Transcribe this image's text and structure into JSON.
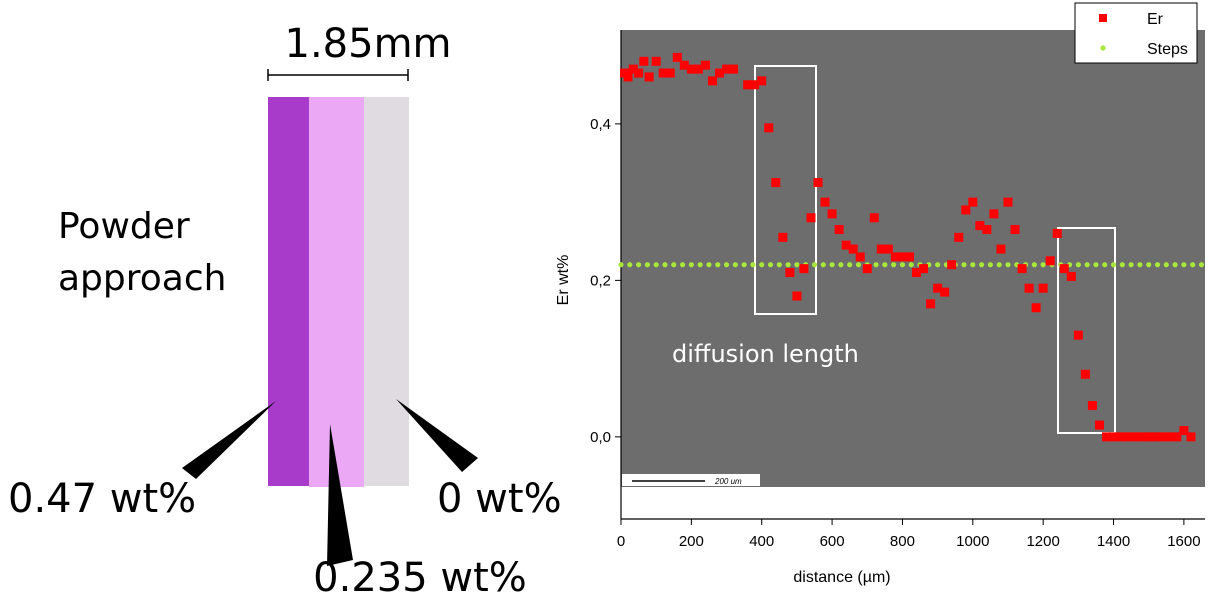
{
  "diagram": {
    "width_label": "1.85mm",
    "title_lines": [
      "Powder",
      "approach"
    ],
    "labels": [
      "0.47 wt%",
      "0.235 wt%",
      "0 wt%"
    ]
  },
  "chart_data": {
    "type": "scatter",
    "x_label": "distance (µm)",
    "y_label": "Er wt%",
    "annotations": [
      "diffusion length",
      "200 um"
    ],
    "legend": "upper right",
    "xlim": [
      0,
      1660
    ],
    "ylim": [
      -0.105,
      0.52
    ],
    "xticks": [
      0,
      200,
      400,
      600,
      800,
      1000,
      1200,
      1400,
      1600
    ],
    "yticks": [
      {
        "value": 0,
        "label": "0,0"
      },
      {
        "value": 0.2,
        "label": "0,2"
      },
      {
        "value": 0.4,
        "label": "0,4"
      }
    ],
    "series": [
      {
        "name": "Er",
        "color": "#ff0000",
        "marker": "square",
        "x": [
          10,
          20,
          35,
          50,
          65,
          80,
          100,
          120,
          140,
          160,
          180,
          200,
          220,
          240,
          260,
          280,
          300,
          320,
          360,
          380,
          400,
          420,
          440,
          460,
          480,
          500,
          520,
          540,
          560,
          580,
          600,
          620,
          640,
          660,
          680,
          700,
          720,
          740,
          760,
          780,
          800,
          820,
          840,
          860,
          880,
          900,
          920,
          940,
          960,
          980,
          1000,
          1020,
          1040,
          1060,
          1080,
          1100,
          1120,
          1140,
          1160,
          1180,
          1200,
          1220,
          1240,
          1260,
          1280,
          1300,
          1320,
          1340,
          1360,
          1380,
          1400,
          1420,
          1440,
          1460,
          1480,
          1500,
          1520,
          1540,
          1560,
          1580,
          1600,
          1620
        ],
        "values": [
          0.465,
          0.46,
          0.47,
          0.465,
          0.48,
          0.46,
          0.48,
          0.465,
          0.465,
          0.485,
          0.475,
          0.47,
          0.47,
          0.475,
          0.455,
          0.465,
          0.47,
          0.47,
          0.45,
          0.45,
          0.455,
          0.395,
          0.325,
          0.255,
          0.21,
          0.18,
          0.215,
          0.28,
          0.325,
          0.3,
          0.285,
          0.265,
          0.245,
          0.24,
          0.23,
          0.215,
          0.28,
          0.24,
          0.24,
          0.23,
          0.23,
          0.23,
          0.21,
          0.215,
          0.17,
          0.19,
          0.185,
          0.22,
          0.255,
          0.29,
          0.3,
          0.27,
          0.265,
          0.285,
          0.24,
          0.3,
          0.265,
          0.215,
          0.19,
          0.165,
          0.19,
          0.225,
          0.26,
          0.215,
          0.205,
          0.13,
          0.08,
          0.04,
          0.015,
          0,
          0,
          0,
          0,
          0,
          0,
          0,
          0,
          0,
          0,
          0,
          0.008,
          0
        ]
      },
      {
        "name": "Steps",
        "color": "#a8e83a",
        "marker": "circle",
        "x": [
          0,
          25,
          50,
          75,
          100,
          125,
          150,
          175,
          200,
          225,
          250,
          275,
          300,
          325,
          350,
          375,
          400,
          425,
          450,
          475,
          500,
          525,
          550,
          575,
          600,
          625,
          650,
          675,
          700,
          725,
          750,
          775,
          800,
          825,
          850,
          875,
          900,
          925,
          950,
          975,
          1000,
          1025,
          1050,
          1075,
          1100,
          1125,
          1150,
          1175,
          1200,
          1225,
          1250,
          1275,
          1300,
          1325,
          1350,
          1375,
          1400,
          1425,
          1450,
          1475,
          1500,
          1525,
          1550,
          1575,
          1600,
          1625,
          1650
        ],
        "values": [
          0.22,
          0.22,
          0.22,
          0.22,
          0.22,
          0.22,
          0.22,
          0.22,
          0.22,
          0.22,
          0.22,
          0.22,
          0.22,
          0.22,
          0.22,
          0.22,
          0.22,
          0.22,
          0.22,
          0.22,
          0.22,
          0.22,
          0.22,
          0.22,
          0.22,
          0.22,
          0.22,
          0.22,
          0.22,
          0.22,
          0.22,
          0.22,
          0.22,
          0.22,
          0.22,
          0.22,
          0.22,
          0.22,
          0.22,
          0.22,
          0.22,
          0.22,
          0.22,
          0.22,
          0.22,
          0.22,
          0.22,
          0.22,
          0.22,
          0.22,
          0.22,
          0.22,
          0.22,
          0.22,
          0.22,
          0.22,
          0.22,
          0.22,
          0.22,
          0.22,
          0.22,
          0.22,
          0.22,
          0.22,
          0.22,
          0.22,
          0.22
        ]
      }
    ]
  }
}
